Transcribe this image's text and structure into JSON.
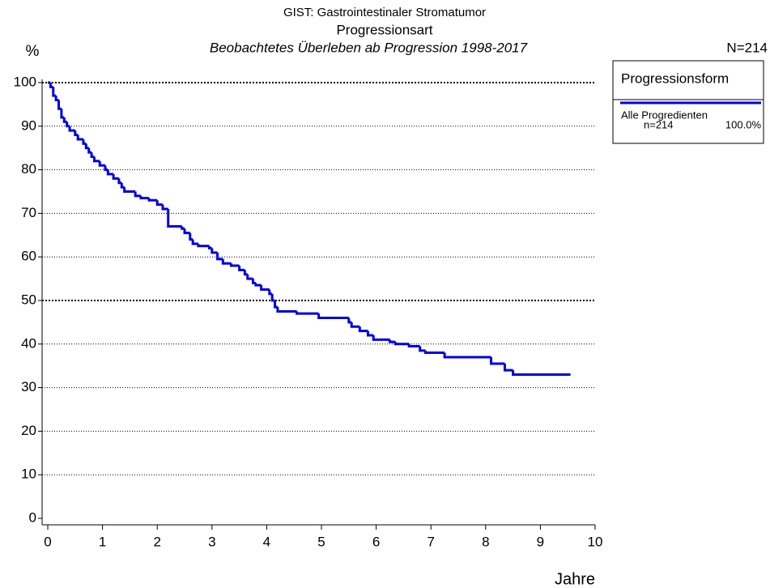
{
  "chart_data": {
    "type": "step",
    "title": "GIST: Gastrointestinaler Stromatumor",
    "subtitle": "Progressionsart",
    "subtitle2": "Beobachtetes Überleben ab Progression 1998-2017",
    "y_label": "%",
    "x_label": "Jahre",
    "n_label": "N=214",
    "legend_title": "Progressionsform",
    "ylim": [
      0,
      100
    ],
    "yticks": [
      0,
      10,
      20,
      30,
      40,
      50,
      60,
      70,
      80,
      90,
      100
    ],
    "xlim": [
      0,
      10
    ],
    "xticks": [
      0,
      1,
      2,
      3,
      4,
      5,
      6,
      7,
      8,
      9,
      10
    ],
    "grid": true,
    "series": [
      {
        "name": "Alle Progredienten",
        "n_text": "n=214",
        "share_text": "100.0%",
        "color": "#0000e0",
        "x": [
          0,
          0.05,
          0.1,
          0.15,
          0.2,
          0.25,
          0.3,
          0.35,
          0.4,
          0.5,
          0.55,
          0.65,
          0.7,
          0.75,
          0.8,
          0.85,
          0.95,
          1.05,
          1.1,
          1.2,
          1.3,
          1.35,
          1.4,
          1.6,
          1.7,
          1.85,
          2.0,
          2.1,
          2.2,
          2.45,
          2.5,
          2.6,
          2.65,
          2.75,
          2.95,
          3.0,
          3.1,
          3.2,
          3.35,
          3.5,
          3.6,
          3.65,
          3.75,
          3.8,
          3.9,
          4.05,
          4.1,
          4.15,
          4.2,
          4.55,
          4.95,
          5.5,
          5.55,
          5.7,
          5.85,
          5.95,
          6.25,
          6.35,
          6.6,
          6.8,
          6.9,
          7.25,
          8.1,
          8.35,
          8.5,
          9.55
        ],
        "values": [
          100,
          99,
          97,
          96,
          94,
          92,
          91,
          90,
          89,
          88,
          87,
          86,
          85,
          84,
          83,
          82,
          81,
          80,
          79,
          78,
          77,
          76,
          75,
          74,
          73.5,
          73,
          72,
          71,
          67,
          66.5,
          65.5,
          64,
          63,
          62.5,
          62,
          61,
          59.5,
          58.5,
          58,
          57,
          56,
          55,
          54,
          53.5,
          52.5,
          51.5,
          50,
          48.5,
          47.5,
          47,
          46,
          45,
          44,
          43,
          42,
          41,
          40.5,
          40,
          39.5,
          38.5,
          38,
          37,
          35.5,
          34,
          33,
          33
        ]
      }
    ]
  }
}
